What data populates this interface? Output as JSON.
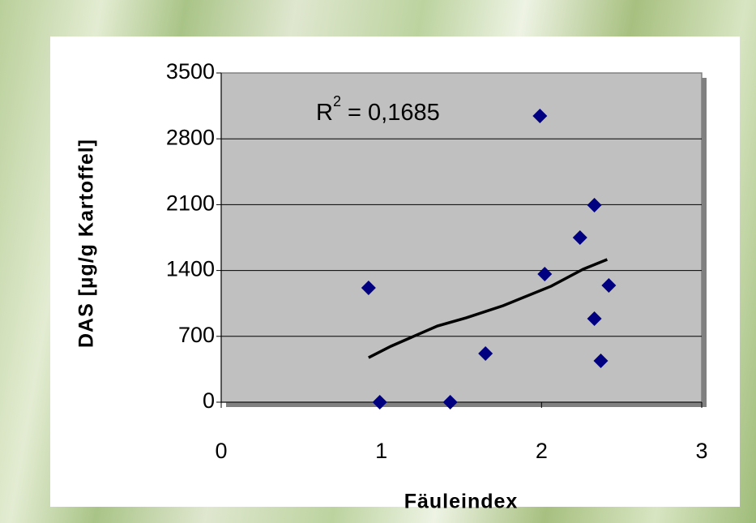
{
  "chart_data": {
    "type": "scatter",
    "x_label": "Fäuleindex",
    "y_label": "DAS [µg/g Kartoffel]",
    "annotation": {
      "base": "R",
      "sup": "2",
      "rest": " = 0,1685"
    },
    "series": [
      {
        "color": "#000080",
        "x": [
          0.92,
          0.99,
          1.43,
          1.65,
          1.99,
          2.02,
          2.24,
          2.33,
          2.33,
          2.42,
          2.37
        ],
        "values": [
          1215,
          0,
          0,
          517,
          3043,
          1362,
          1750,
          2095,
          888,
          1241,
          440
        ]
      }
    ],
    "trendline": {
      "color": "#000000",
      "x": [
        0.92,
        1.06,
        1.35,
        1.53,
        1.76,
        2.06,
        2.26,
        2.41
      ],
      "values": [
        474,
        595,
        810,
        897,
        1026,
        1233,
        1414,
        1517
      ]
    },
    "xlim": [
      0,
      3
    ],
    "xticks": [
      0,
      1,
      2,
      3
    ],
    "ylim": [
      0,
      3500
    ],
    "yticks": [
      0,
      700,
      1400,
      2100,
      2800,
      3500
    ],
    "grid": true
  }
}
